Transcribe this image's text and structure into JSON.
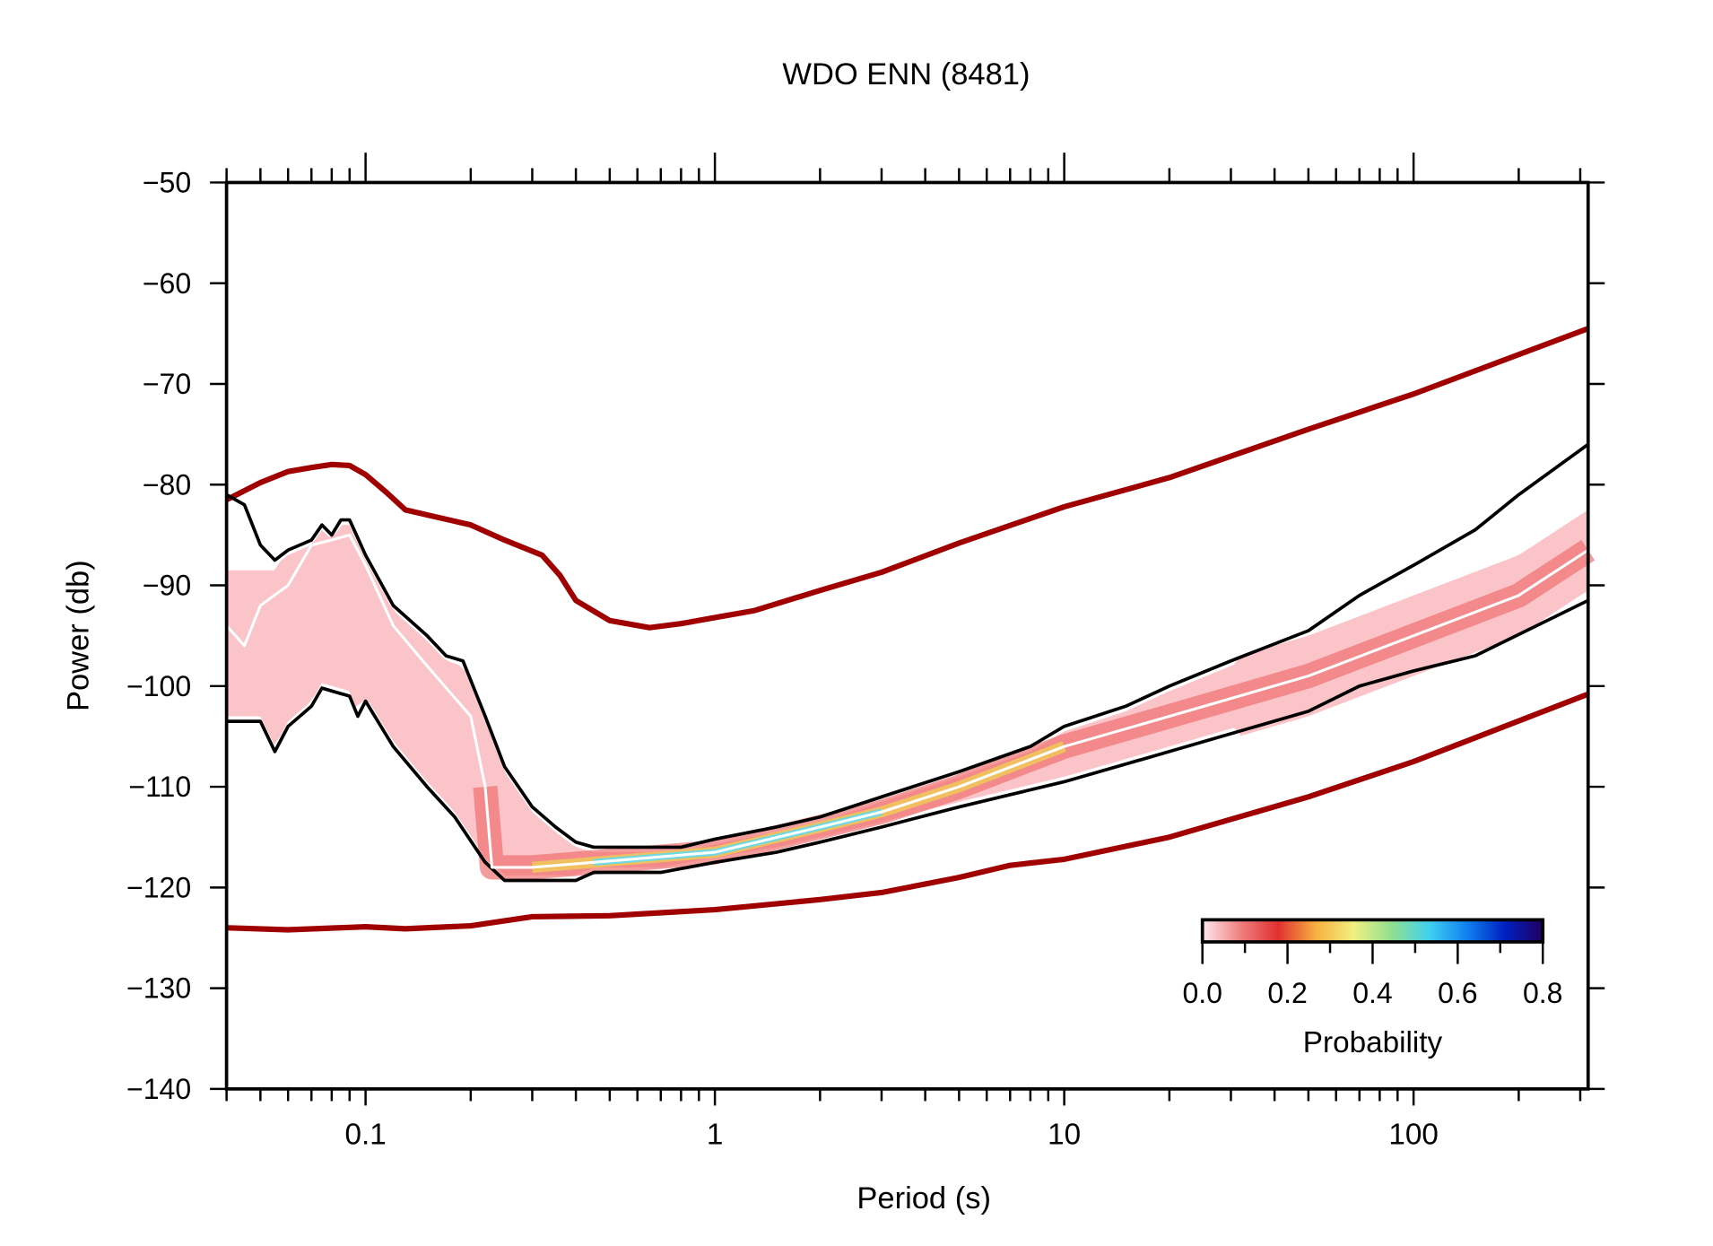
{
  "chart_data": {
    "type": "line",
    "title": "WDO ENN (8481)",
    "xlabel": "Period (s)",
    "ylabel": "Power (db)",
    "xscale": "log",
    "xlim": [
      0.04,
      316
    ],
    "ylim": [
      -140,
      -50
    ],
    "xticks": [
      {
        "v": 0.1,
        "label": "0.1"
      },
      {
        "v": 1,
        "label": "1"
      },
      {
        "v": 10,
        "label": "10"
      },
      {
        "v": 100,
        "label": "100"
      }
    ],
    "yticks": [
      {
        "v": -50,
        "label": "−50"
      },
      {
        "v": -60,
        "label": "−60"
      },
      {
        "v": -70,
        "label": "−70"
      },
      {
        "v": -80,
        "label": "−80"
      },
      {
        "v": -90,
        "label": "−90"
      },
      {
        "v": -100,
        "label": "−100"
      },
      {
        "v": -110,
        "label": "−110"
      },
      {
        "v": -120,
        "label": "−120"
      },
      {
        "v": -130,
        "label": "−130"
      },
      {
        "v": -140,
        "label": "−140"
      }
    ],
    "grid": false,
    "series": [
      {
        "key": "high_noise_model",
        "color": "#a00000",
        "points": [
          [
            0.04,
            -81.5
          ],
          [
            0.05,
            -79.8
          ],
          [
            0.06,
            -78.7
          ],
          [
            0.07,
            -78.3
          ],
          [
            0.08,
            -78
          ],
          [
            0.09,
            -78.1
          ],
          [
            0.1,
            -79
          ],
          [
            0.115,
            -80.8
          ],
          [
            0.13,
            -82.5
          ],
          [
            0.15,
            -83
          ],
          [
            0.2,
            -84
          ],
          [
            0.25,
            -85.5
          ],
          [
            0.32,
            -87
          ],
          [
            0.36,
            -89
          ],
          [
            0.4,
            -91.5
          ],
          [
            0.5,
            -93.5
          ],
          [
            0.65,
            -94.2
          ],
          [
            0.8,
            -93.8
          ],
          [
            1,
            -93.2
          ],
          [
            1.3,
            -92.5
          ],
          [
            2,
            -90.5
          ],
          [
            3,
            -88.7
          ],
          [
            5,
            -85.8
          ],
          [
            10,
            -82.2
          ],
          [
            20,
            -79.3
          ],
          [
            50,
            -74.5
          ],
          [
            100,
            -71
          ],
          [
            316,
            -64.5
          ]
        ]
      },
      {
        "key": "low_noise_model",
        "color": "#a00000",
        "points": [
          [
            0.04,
            -124
          ],
          [
            0.06,
            -124.2
          ],
          [
            0.1,
            -123.9
          ],
          [
            0.13,
            -124.1
          ],
          [
            0.2,
            -123.8
          ],
          [
            0.3,
            -122.9
          ],
          [
            0.5,
            -122.8
          ],
          [
            1,
            -122.2
          ],
          [
            2,
            -121.2
          ],
          [
            3,
            -120.5
          ],
          [
            5,
            -119
          ],
          [
            7,
            -117.8
          ],
          [
            10,
            -117.2
          ],
          [
            20,
            -115
          ],
          [
            50,
            -111
          ],
          [
            100,
            -107.5
          ],
          [
            316,
            -100.8
          ]
        ]
      },
      {
        "key": "upper_percentile",
        "color": "#000000",
        "points": [
          [
            0.04,
            -81
          ],
          [
            0.045,
            -82
          ],
          [
            0.05,
            -86
          ],
          [
            0.055,
            -87.5
          ],
          [
            0.06,
            -86.5
          ],
          [
            0.07,
            -85.5
          ],
          [
            0.075,
            -84
          ],
          [
            0.08,
            -85
          ],
          [
            0.085,
            -83.5
          ],
          [
            0.09,
            -83.5
          ],
          [
            0.1,
            -87
          ],
          [
            0.12,
            -92
          ],
          [
            0.15,
            -95
          ],
          [
            0.17,
            -97
          ],
          [
            0.19,
            -97.5
          ],
          [
            0.22,
            -103
          ],
          [
            0.25,
            -108
          ],
          [
            0.3,
            -112
          ],
          [
            0.35,
            -114
          ],
          [
            0.4,
            -115.5
          ],
          [
            0.45,
            -116
          ],
          [
            0.8,
            -116
          ],
          [
            1,
            -115.2
          ],
          [
            1.5,
            -114
          ],
          [
            2,
            -113
          ],
          [
            3,
            -111
          ],
          [
            5,
            -108.5
          ],
          [
            8,
            -106
          ],
          [
            10,
            -104
          ],
          [
            15,
            -102
          ],
          [
            20,
            -100
          ],
          [
            30,
            -97.5
          ],
          [
            50,
            -94.5
          ],
          [
            70,
            -91
          ],
          [
            100,
            -88
          ],
          [
            150,
            -84.5
          ],
          [
            200,
            -81
          ],
          [
            316,
            -76
          ]
        ]
      },
      {
        "key": "lower_percentile",
        "color": "#000000",
        "points": [
          [
            0.04,
            -103.5
          ],
          [
            0.05,
            -103.5
          ],
          [
            0.055,
            -106.5
          ],
          [
            0.06,
            -104
          ],
          [
            0.07,
            -102
          ],
          [
            0.075,
            -100.2
          ],
          [
            0.09,
            -101
          ],
          [
            0.095,
            -103
          ],
          [
            0.1,
            -101.5
          ],
          [
            0.12,
            -106
          ],
          [
            0.15,
            -110
          ],
          [
            0.18,
            -113
          ],
          [
            0.22,
            -117.5
          ],
          [
            0.25,
            -119.3
          ],
          [
            0.4,
            -119.3
          ],
          [
            0.45,
            -118.5
          ],
          [
            0.7,
            -118.5
          ],
          [
            1,
            -117.5
          ],
          [
            1.5,
            -116.5
          ],
          [
            2,
            -115.5
          ],
          [
            3,
            -114
          ],
          [
            5,
            -112
          ],
          [
            10,
            -109.5
          ],
          [
            20,
            -106.5
          ],
          [
            50,
            -102.5
          ],
          [
            70,
            -100
          ],
          [
            100,
            -98.5
          ],
          [
            150,
            -97
          ],
          [
            316,
            -91.5
          ]
        ]
      },
      {
        "key": "median",
        "color": "#ffffff",
        "points": [
          [
            0.04,
            -94
          ],
          [
            0.045,
            -96
          ],
          [
            0.05,
            -92
          ],
          [
            0.06,
            -90
          ],
          [
            0.07,
            -86
          ],
          [
            0.08,
            -85.5
          ],
          [
            0.09,
            -85
          ],
          [
            0.1,
            -88
          ],
          [
            0.12,
            -94
          ],
          [
            0.15,
            -98
          ],
          [
            0.2,
            -103
          ],
          [
            0.22,
            -110
          ],
          [
            0.23,
            -118
          ],
          [
            0.3,
            -118
          ],
          [
            0.45,
            -117.5
          ],
          [
            1,
            -116.5
          ],
          [
            2,
            -114
          ],
          [
            3,
            -112.5
          ],
          [
            5,
            -110
          ],
          [
            10,
            -106
          ],
          [
            20,
            -103
          ],
          [
            50,
            -99
          ],
          [
            100,
            -95
          ],
          [
            200,
            -91
          ],
          [
            316,
            -86.5
          ]
        ]
      }
    ],
    "colorbar": {
      "label": "Probability",
      "range": [
        0,
        0.8
      ],
      "ticks": [
        {
          "v": 0,
          "label": "0.0"
        },
        {
          "v": 0.2,
          "label": "0.2"
        },
        {
          "v": 0.4,
          "label": "0.4"
        },
        {
          "v": 0.6,
          "label": "0.6"
        },
        {
          "v": 0.8,
          "label": "0.8"
        }
      ],
      "colors": [
        "#ffe8ee",
        "#f08080",
        "#e03030",
        "#f8b040",
        "#f0f080",
        "#90e090",
        "#40d0f0",
        "#1080f0",
        "#0020c0",
        "#200060"
      ],
      "placement": "bottom-right"
    }
  }
}
